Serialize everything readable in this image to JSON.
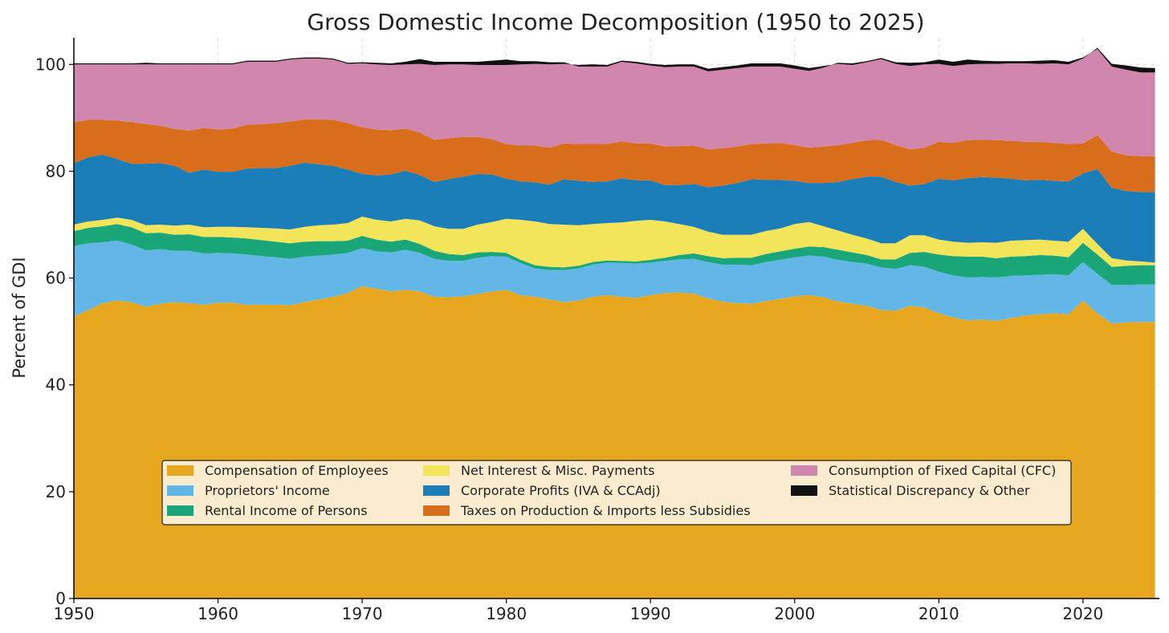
{
  "chart_data": {
    "type": "area",
    "stacked": true,
    "title": "Gross Domestic Income Decomposition (1950 to 2025)",
    "xlabel": "",
    "ylabel": "Percent of GDI",
    "xlim": [
      1950,
      2025.3
    ],
    "ylim": [
      0,
      105
    ],
    "xticks": [
      1950,
      1960,
      1970,
      1980,
      1990,
      2000,
      2010,
      2020
    ],
    "yticks": [
      0,
      20,
      40,
      60,
      80,
      100
    ],
    "grid": true,
    "legend_position": "lower-center",
    "x": [
      1950,
      1951,
      1952,
      1953,
      1954,
      1955,
      1956,
      1957,
      1958,
      1959,
      1960,
      1961,
      1962,
      1963,
      1964,
      1965,
      1966,
      1967,
      1968,
      1969,
      1970,
      1971,
      1972,
      1973,
      1974,
      1975,
      1976,
      1977,
      1978,
      1979,
      1980,
      1981,
      1982,
      1983,
      1984,
      1985,
      1986,
      1987,
      1988,
      1989,
      1990,
      1991,
      1992,
      1993,
      1994,
      1995,
      1996,
      1997,
      1998,
      1999,
      2000,
      2001,
      2002,
      2003,
      2004,
      2005,
      2006,
      2007,
      2008,
      2009,
      2010,
      2011,
      2012,
      2013,
      2014,
      2015,
      2016,
      2017,
      2018,
      2019,
      2020,
      2021,
      2022,
      2023,
      2024,
      2025
    ],
    "series": [
      {
        "name": "Compensation of Employees",
        "color": "#E6A61E",
        "values": [
          52.8,
          54.0,
          55.3,
          55.8,
          55.5,
          54.6,
          55.2,
          55.5,
          55.3,
          55.0,
          55.4,
          55.4,
          55.0,
          55.0,
          55.0,
          54.9,
          55.5,
          56.0,
          56.5,
          57.2,
          58.5,
          58.0,
          57.5,
          57.8,
          57.5,
          56.5,
          56.4,
          56.6,
          57.0,
          57.5,
          57.8,
          56.8,
          56.5,
          56.0,
          55.5,
          55.8,
          56.5,
          56.8,
          56.5,
          56.3,
          56.8,
          57.2,
          57.3,
          57.1,
          56.2,
          55.6,
          55.3,
          55.2,
          55.7,
          56.1,
          56.6,
          56.8,
          56.4,
          55.6,
          55.2,
          54.8,
          54.0,
          53.9,
          54.8,
          54.5,
          53.4,
          52.6,
          52.1,
          52.2,
          52.0,
          52.5,
          53.0,
          53.2,
          53.4,
          53.2,
          55.8,
          53.4,
          51.5,
          51.7,
          51.8,
          51.8
        ]
      },
      {
        "name": "Proprietors' Income",
        "color": "#62B7E6",
        "values": [
          13.2,
          12.5,
          11.4,
          11.2,
          10.8,
          10.6,
          10.2,
          9.6,
          9.8,
          9.6,
          9.3,
          9.2,
          9.4,
          9.1,
          8.9,
          8.7,
          8.5,
          8.2,
          7.9,
          7.5,
          7.1,
          7.0,
          7.3,
          7.5,
          7.2,
          7.1,
          6.8,
          6.6,
          6.8,
          6.6,
          6.2,
          6.0,
          5.3,
          5.5,
          6.0,
          6.0,
          6.0,
          6.1,
          6.3,
          6.4,
          6.1,
          6.0,
          6.2,
          6.5,
          6.8,
          6.9,
          7.2,
          7.2,
          7.3,
          7.3,
          7.3,
          7.4,
          7.6,
          7.8,
          7.8,
          7.9,
          8.0,
          7.8,
          7.6,
          7.6,
          7.8,
          7.9,
          8.0,
          8.0,
          8.1,
          7.9,
          7.5,
          7.4,
          7.3,
          7.3,
          7.2,
          7.4,
          7.2,
          7.0,
          7.0,
          7.0
        ]
      },
      {
        "name": "Rental Income of Persons",
        "color": "#1BA67A",
        "values": [
          2.8,
          2.9,
          3.0,
          3.1,
          3.2,
          3.2,
          3.1,
          3.0,
          3.1,
          3.1,
          3.0,
          3.0,
          3.0,
          3.0,
          2.9,
          2.9,
          2.8,
          2.7,
          2.5,
          2.3,
          2.3,
          2.2,
          2.0,
          1.9,
          1.7,
          1.5,
          1.3,
          1.1,
          1.0,
          0.8,
          0.7,
          0.6,
          0.6,
          0.6,
          0.5,
          0.5,
          0.5,
          0.4,
          0.4,
          0.4,
          0.5,
          0.6,
          0.8,
          1.0,
          1.1,
          1.2,
          1.3,
          1.4,
          1.5,
          1.6,
          1.6,
          1.7,
          1.8,
          1.9,
          1.8,
          1.6,
          1.5,
          1.8,
          2.3,
          2.8,
          3.2,
          3.6,
          3.9,
          3.8,
          3.6,
          3.6,
          3.6,
          3.7,
          3.5,
          3.4,
          3.6,
          3.6,
          3.4,
          3.6,
          3.6,
          3.6
        ]
      },
      {
        "name": "Net Interest & Misc. Payments",
        "color": "#F2E55A",
        "values": [
          1.2,
          1.2,
          1.2,
          1.2,
          1.4,
          1.5,
          1.5,
          1.7,
          1.8,
          1.8,
          1.9,
          2.0,
          2.1,
          2.3,
          2.5,
          2.6,
          2.8,
          3.0,
          3.1,
          3.3,
          3.6,
          3.7,
          3.8,
          3.9,
          4.4,
          4.6,
          4.7,
          4.9,
          5.2,
          5.6,
          6.4,
          7.5,
          8.2,
          8.0,
          8.0,
          7.6,
          7.1,
          7.0,
          7.2,
          7.6,
          7.5,
          6.8,
          5.8,
          5.0,
          4.6,
          4.4,
          4.3,
          4.3,
          4.3,
          4.3,
          4.6,
          4.6,
          3.9,
          3.6,
          3.3,
          3.1,
          3.0,
          3.0,
          3.3,
          3.1,
          2.8,
          2.7,
          2.6,
          2.7,
          2.9,
          3.0,
          3.0,
          2.9,
          2.8,
          2.9,
          2.6,
          2.0,
          1.6,
          1.0,
          0.7,
          0.5
        ]
      },
      {
        "name": "Corporate Profits (IVA & CCAdj)",
        "color": "#1B7EB9",
        "values": [
          11.5,
          12.0,
          12.2,
          11.0,
          10.5,
          11.5,
          11.5,
          11.2,
          9.7,
          10.8,
          10.3,
          10.3,
          11.0,
          11.2,
          11.3,
          11.9,
          12.0,
          11.4,
          11.0,
          10.0,
          8.0,
          8.3,
          8.8,
          9.0,
          8.5,
          8.3,
          9.3,
          9.8,
          9.5,
          8.9,
          7.5,
          7.2,
          7.3,
          7.4,
          8.5,
          8.3,
          7.9,
          7.8,
          8.3,
          7.6,
          7.4,
          6.8,
          7.3,
          8.0,
          8.3,
          9.2,
          9.7,
          10.4,
          9.6,
          9.1,
          8.1,
          7.3,
          8.1,
          9.1,
          10.4,
          11.6,
          12.5,
          11.5,
          9.3,
          9.6,
          11.4,
          11.5,
          12.1,
          12.2,
          12.2,
          11.6,
          11.2,
          11.2,
          11.2,
          11.3,
          10.4,
          14.0,
          13.2,
          13.0,
          13.0,
          13.2
        ]
      },
      {
        "name": "Taxes on Production & Imports less Subsidies",
        "color": "#D86D1B",
        "values": [
          7.7,
          7.0,
          6.5,
          7.2,
          7.8,
          7.4,
          7.0,
          6.9,
          7.9,
          7.8,
          7.9,
          8.1,
          8.2,
          8.2,
          8.4,
          8.3,
          8.1,
          8.4,
          8.6,
          8.7,
          8.7,
          8.6,
          8.3,
          7.9,
          7.9,
          7.9,
          7.7,
          7.4,
          6.9,
          6.6,
          6.5,
          6.7,
          6.9,
          6.9,
          6.7,
          6.9,
          7.1,
          7.0,
          6.9,
          6.9,
          6.9,
          7.2,
          7.3,
          7.2,
          7.1,
          7.0,
          6.8,
          6.6,
          6.8,
          6.9,
          6.7,
          6.6,
          6.8,
          6.9,
          6.8,
          6.8,
          6.9,
          6.9,
          6.8,
          6.8,
          6.9,
          7.0,
          7.1,
          7.0,
          7.0,
          7.1,
          7.2,
          7.1,
          7.1,
          7.0,
          5.6,
          6.4,
          6.8,
          6.7,
          6.7,
          6.7
        ]
      },
      {
        "name": "Consumption of Fixed Capital (CFC)",
        "color": "#D186AE",
        "values": [
          10.8,
          10.4,
          10.4,
          10.5,
          10.8,
          11.2,
          11.5,
          12.1,
          12.4,
          11.9,
          12.2,
          12.0,
          11.8,
          11.7,
          11.5,
          11.6,
          11.4,
          11.4,
          11.3,
          11.1,
          12.0,
          12.2,
          12.2,
          12.0,
          12.9,
          14.0,
          13.8,
          13.6,
          13.5,
          13.9,
          14.8,
          15.2,
          15.3,
          15.6,
          14.9,
          14.8,
          14.9,
          14.8,
          15.1,
          15.3,
          14.9,
          15.3,
          15.3,
          15.2,
          15.1,
          15.2,
          15.2,
          15.1,
          15.0,
          14.9,
          14.9,
          14.9,
          15.1,
          15.2,
          14.6,
          14.6,
          15.1,
          15.2,
          15.6,
          15.6,
          14.6,
          14.4,
          14.2,
          14.2,
          14.3,
          14.5,
          14.7,
          14.6,
          14.9,
          14.9,
          15.9,
          16.3,
          16.4,
          16.8,
          16.6,
          16.5
        ]
      },
      {
        "name": "Statistical Discrepancy & Other",
        "color": "#111111",
        "values": [
          0.2,
          0.2,
          0.2,
          0.2,
          0.2,
          0.3,
          0.2,
          0.2,
          0.2,
          0.2,
          0.2,
          0.2,
          0.2,
          0.2,
          0.2,
          0.2,
          0.2,
          0.2,
          0.2,
          0.2,
          0.2,
          0.3,
          0.3,
          0.5,
          0.9,
          0.6,
          0.5,
          0.5,
          0.6,
          0.8,
          1.0,
          0.6,
          0.5,
          0.4,
          0.3,
          -0.3,
          -0.4,
          -0.3,
          -0.2,
          -0.3,
          -0.3,
          -0.4,
          -0.4,
          -0.4,
          -0.5,
          -0.5,
          -0.5,
          -0.6,
          -0.6,
          -0.6,
          -0.6,
          -0.5,
          -0.3,
          0.2,
          0.3,
          0.2,
          0.2,
          0.3,
          0.6,
          0.4,
          0.8,
          0.8,
          0.9,
          0.6,
          0.5,
          0.4,
          0.4,
          0.6,
          0.6,
          0.5,
          0.2,
          -0.2,
          -0.5,
          -0.8,
          -0.9,
          -0.8
        ]
      }
    ]
  }
}
